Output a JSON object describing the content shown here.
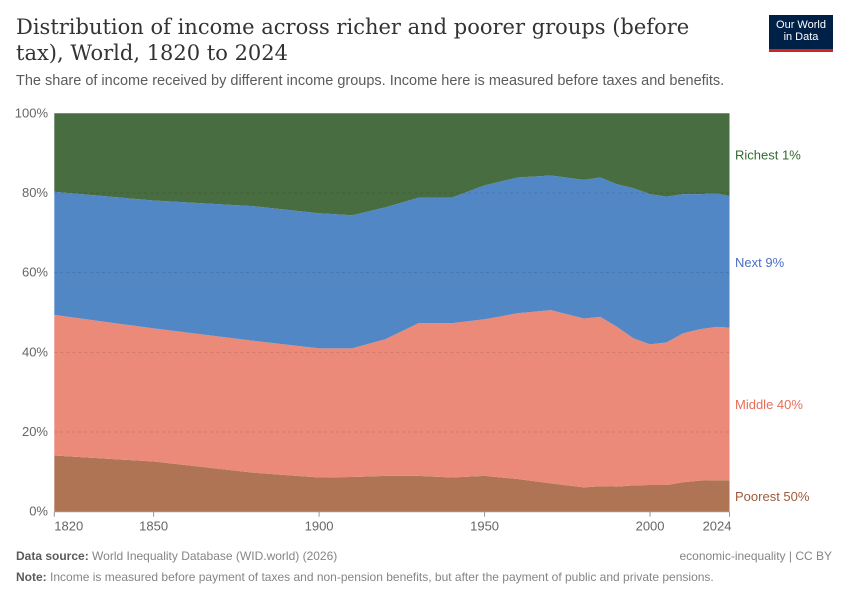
{
  "header": {
    "title": "Distribution of income across richer and poorer groups (before tax), World, 1820 to 2024",
    "subtitle": "The share of income received by different income groups. Income here is measured before taxes and benefits.",
    "logo": "Our World in Data"
  },
  "footer": {
    "source_label": "Data source:",
    "source": "World Inequality Database (WID.world) (2026)",
    "license": "economic-inequality | CC BY",
    "note_label": "Note:",
    "note": "Income is measured before payment of taxes and non-pension benefits, but after the payment of public and private pensions."
  },
  "chart_data": {
    "type": "area",
    "stacked": true,
    "xlim": [
      1820,
      2024
    ],
    "ylim": [
      0,
      100
    ],
    "x_ticks": [
      "1820",
      "1850",
      "1900",
      "1950",
      "2000",
      "2024"
    ],
    "y_ticks": [
      "0%",
      "20%",
      "40%",
      "60%",
      "80%",
      "100%"
    ],
    "grid": "horizontal dashed",
    "legend": "right (inline labels)",
    "x": [
      1820,
      1850,
      1880,
      1900,
      1910,
      1920,
      1930,
      1940,
      1950,
      1960,
      1970,
      1980,
      1985,
      1990,
      1995,
      2000,
      2005,
      2010,
      2015,
      2020,
      2024
    ],
    "series": [
      {
        "name": "Poorest 50%",
        "color": "#ae7453",
        "label_color": "#a05a3c",
        "values": [
          14.1,
          12.6,
          9.8,
          8.6,
          8.7,
          9.0,
          9.0,
          8.6,
          9.0,
          8.2,
          7.1,
          6.1,
          6.4,
          6.3,
          6.6,
          6.7,
          6.7,
          7.4,
          7.8,
          7.9,
          7.9
        ]
      },
      {
        "name": "Middle 40%",
        "color": "#eb8a79",
        "label_color": "#e56e5a",
        "values": [
          35.3,
          33.4,
          33.1,
          32.4,
          32.3,
          34.3,
          38.3,
          38.7,
          39.3,
          41.6,
          43.5,
          42.4,
          42.5,
          40.1,
          36.9,
          35.3,
          35.8,
          37.4,
          38.0,
          38.5,
          38.3
        ]
      },
      {
        "name": "Next 9%",
        "color": "#5287c6",
        "label_color": "#4c6fc6",
        "values": [
          30.9,
          32.1,
          33.8,
          33.9,
          33.4,
          33.1,
          31.5,
          31.5,
          33.6,
          34.1,
          33.8,
          34.8,
          35.0,
          35.8,
          37.7,
          37.7,
          36.6,
          34.9,
          33.9,
          33.5,
          33.0
        ]
      },
      {
        "name": "Richest 1%",
        "color": "#486d40",
        "label_color": "#356932",
        "values": [
          19.7,
          21.9,
          23.3,
          25.1,
          25.6,
          23.6,
          21.2,
          21.2,
          18.1,
          16.1,
          15.6,
          16.7,
          16.1,
          17.8,
          18.8,
          20.3,
          20.9,
          20.3,
          20.3,
          20.1,
          20.8
        ]
      }
    ]
  }
}
